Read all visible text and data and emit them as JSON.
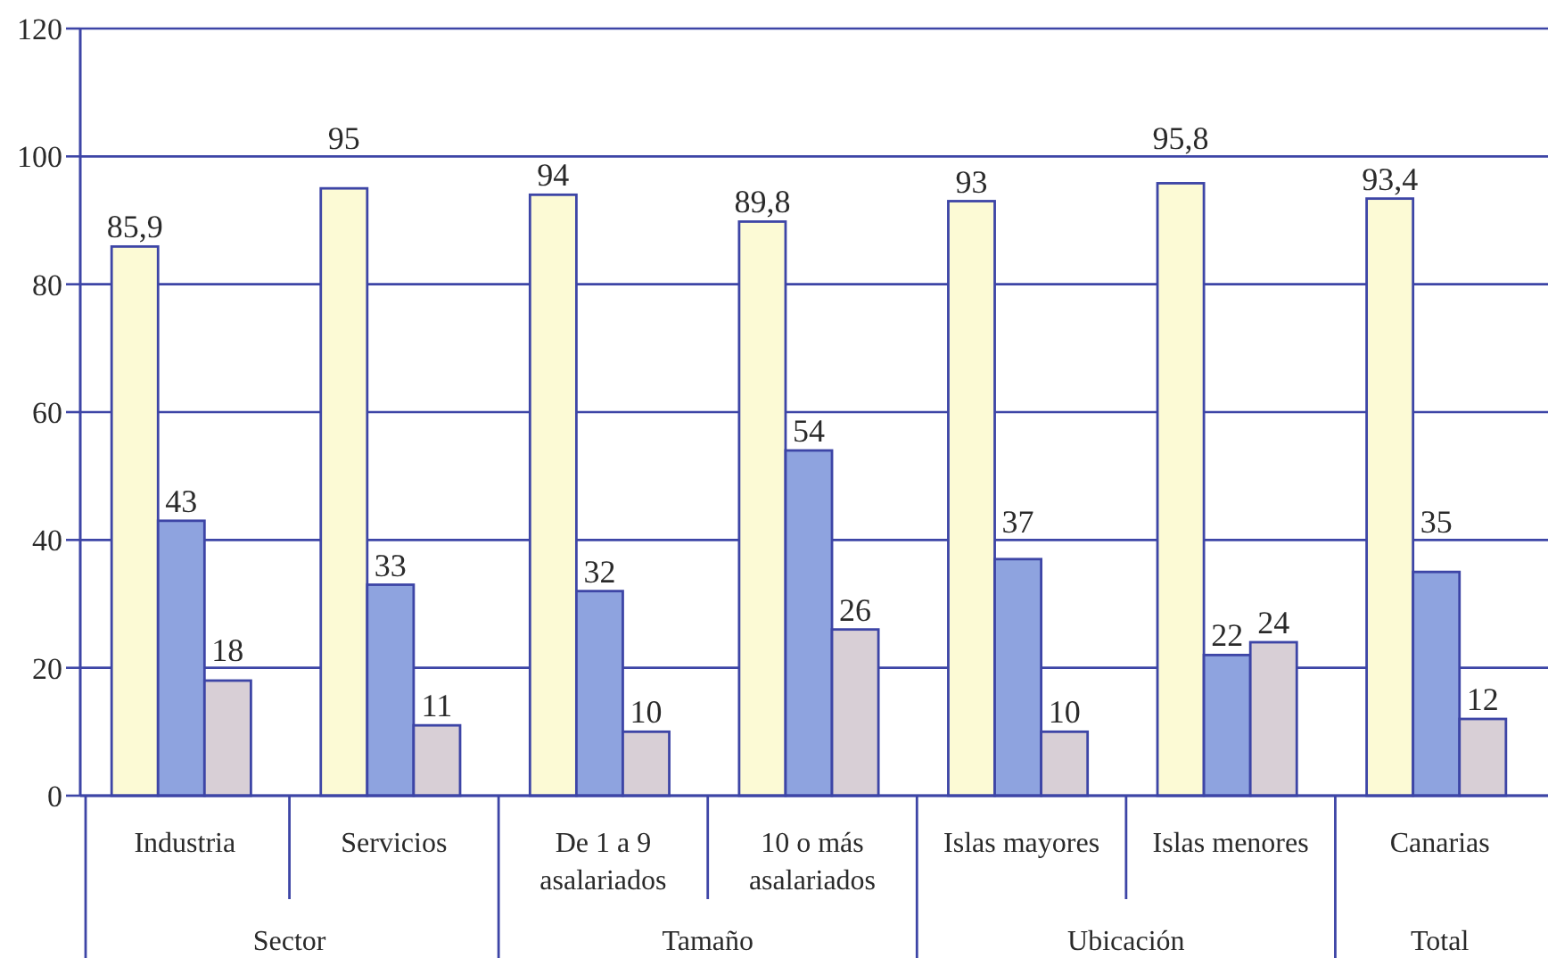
{
  "chart_data": {
    "type": "bar",
    "categories": [
      "Industria",
      "Servicios",
      "De 1 a 9 asalariados",
      "10 o más asalariados",
      "Islas mayores",
      "Islas menores",
      "Canarias"
    ],
    "series": [
      {
        "color": "#fcfad5",
        "values": [
          85.9,
          95,
          94,
          89.8,
          93,
          95.8,
          93.4
        ],
        "value_labels": [
          "85,9",
          "95",
          "94",
          "89,8",
          "93",
          "95,8",
          "93,4"
        ]
      },
      {
        "color": "#8ea3df",
        "values": [
          43,
          33,
          32,
          54,
          37,
          22,
          35
        ],
        "value_labels": [
          "43",
          "33",
          "32",
          "54",
          "37",
          "22",
          "35"
        ]
      },
      {
        "color": "#d8cfd6",
        "values": [
          18,
          11,
          10,
          26,
          10,
          24,
          12
        ],
        "value_labels": [
          "18",
          "11",
          "10",
          "26",
          "10",
          "24",
          "12"
        ]
      }
    ],
    "ylim": [
      0,
      120
    ],
    "yticks": [
      0,
      20,
      40,
      60,
      80,
      100,
      120
    ],
    "grid": "y",
    "annotations": [
      "Sector",
      "Tamaño",
      "Ubicación",
      "Total"
    ]
  }
}
